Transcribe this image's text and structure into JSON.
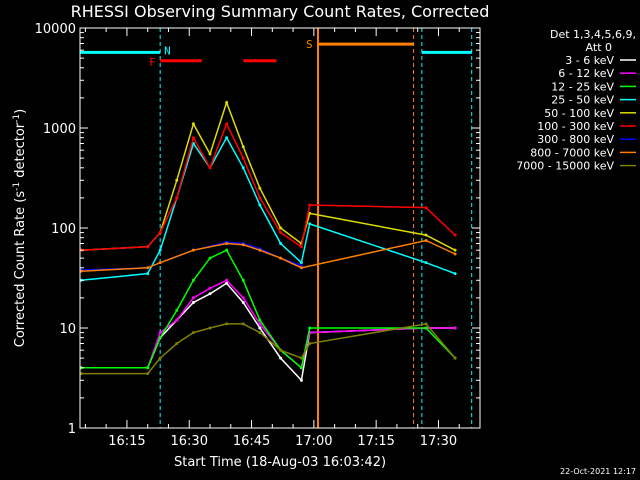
{
  "chart_data": {
    "type": "line",
    "title": "RHESSI Observing Summary Count Rates, Corrected",
    "xlabel": "Start Time (18-Aug-03 16:03:42)",
    "ylabel": "Corrected Count Rate (s⁻¹ detector⁻¹)",
    "ylabel_parts": {
      "main": "Corrected Count Rate (s",
      "exp1": "-1",
      "mid": " detector",
      "exp2": "-1",
      "end": ")"
    },
    "y_scale": "log",
    "ylim": [
      1,
      10000
    ],
    "xlim": [
      "16:03:42",
      "17:40:00"
    ],
    "x_ticks": [
      "16:15",
      "16:30",
      "16:45",
      "17:00",
      "17:15",
      "17:30"
    ],
    "y_ticks": [
      "1",
      "10",
      "100",
      "1000",
      "10000"
    ],
    "legend_header": [
      "Det 1,3,4,5,6,9,",
      "Att 0"
    ],
    "legend_placement": "right",
    "timestamp": "22-Oct-2021 12:17",
    "flag_labels": {
      "N": "N",
      "F": "F",
      "S": "S"
    },
    "colors": {
      "c3_6": "#ffffff",
      "c6_12": "#ff00ff",
      "c12_25": "#00ff00",
      "c25_50": "#00ffff",
      "c50_100": "#dddd00",
      "c100_300": "#ff0000",
      "c300_800": "#0000ff",
      "c800_7000": "#ff8000",
      "c7000_15000": "#808000",
      "night": "#00ffff",
      "flare": "#ff0000",
      "saa": "#ff8000"
    },
    "series": [
      {
        "name": "3 - 6 keV",
        "color": "#ffffff",
        "x": [
          "16:04",
          "16:20",
          "16:23",
          "16:27",
          "16:31",
          "16:35",
          "16:39",
          "16:43",
          "16:47",
          "16:52",
          "16:57",
          "16:59",
          "17:27",
          "17:34"
        ],
        "y": [
          4,
          4,
          8,
          12,
          18,
          22,
          28,
          18,
          10,
          5,
          3,
          9,
          10,
          10
        ]
      },
      {
        "name": "6 - 12 keV",
        "color": "#ff00ff",
        "x": [
          "16:20",
          "16:23",
          "16:27",
          "16:31",
          "16:35",
          "16:39",
          "16:43",
          "16:47",
          "16:52",
          "16:57",
          "16:59",
          "17:27",
          "17:34"
        ],
        "y": [
          4,
          9,
          12,
          20,
          25,
          30,
          20,
          11,
          6,
          4,
          9,
          10,
          10
        ]
      },
      {
        "name": "12 - 25 keV",
        "color": "#00ff00",
        "x": [
          "16:04",
          "16:20",
          "16:23",
          "16:27",
          "16:31",
          "16:35",
          "16:39",
          "16:43",
          "16:47",
          "16:52",
          "16:57",
          "16:59",
          "17:27",
          "17:34"
        ],
        "y": [
          4,
          4,
          8,
          15,
          30,
          50,
          60,
          30,
          12,
          6,
          4,
          10,
          10,
          5
        ]
      },
      {
        "name": "25 - 50 keV",
        "color": "#00ffff",
        "x": [
          "16:04",
          "16:20",
          "16:23",
          "16:27",
          "16:31",
          "16:35",
          "16:39",
          "16:43",
          "16:47",
          "16:52",
          "16:57",
          "16:59",
          "17:27",
          "17:34"
        ],
        "y": [
          30,
          35,
          60,
          200,
          700,
          400,
          800,
          400,
          170,
          70,
          45,
          110,
          45,
          35
        ]
      },
      {
        "name": "50 - 100 keV",
        "color": "#dddd00",
        "x": [
          "16:04",
          "16:20",
          "16:23",
          "16:27",
          "16:31",
          "16:35",
          "16:39",
          "16:43",
          "16:47",
          "16:52",
          "16:57",
          "16:59",
          "17:27",
          "17:34"
        ],
        "y": [
          60,
          65,
          90,
          300,
          1100,
          550,
          1800,
          650,
          250,
          100,
          70,
          140,
          85,
          60
        ]
      },
      {
        "name": "100 - 300 keV",
        "color": "#ff0000",
        "x": [
          "16:04",
          "16:20",
          "16:23",
          "16:27",
          "16:31",
          "16:35",
          "16:39",
          "16:43",
          "16:47",
          "16:52",
          "16:57",
          "16:59",
          "17:27",
          "17:34"
        ],
        "y": [
          60,
          65,
          90,
          200,
          800,
          400,
          1100,
          500,
          200,
          90,
          65,
          170,
          160,
          85
        ]
      },
      {
        "name": "300 - 800 keV",
        "color": "#0000ff",
        "x": [
          "16:04",
          "16:20",
          "16:23",
          "16:31",
          "16:39",
          "16:43",
          "16:47",
          "16:52",
          "16:57"
        ],
        "y": [
          38,
          40,
          45,
          60,
          72,
          70,
          62,
          50,
          42
        ]
      },
      {
        "name": "800 - 7000 keV",
        "color": "#ff8000",
        "x": [
          "16:04",
          "16:20",
          "16:23",
          "16:31",
          "16:39",
          "16:43",
          "16:47",
          "16:52",
          "16:57",
          "17:27",
          "17:34"
        ],
        "y": [
          37,
          40,
          45,
          60,
          70,
          68,
          60,
          50,
          40,
          75,
          55
        ]
      },
      {
        "name": "7000 - 15000 keV",
        "color": "#808000",
        "x": [
          "16:04",
          "16:20",
          "16:23",
          "16:27",
          "16:31",
          "16:35",
          "16:39",
          "16:43",
          "16:47",
          "16:52",
          "16:57",
          "16:59",
          "17:27",
          "17:34"
        ],
        "y": [
          3.5,
          3.5,
          5,
          7,
          9,
          10,
          11,
          11,
          9,
          6,
          5,
          7,
          11,
          5
        ]
      }
    ],
    "night_intervals": [
      [
        "16:03:42",
        "16:23:00"
      ],
      [
        "17:26:00",
        "17:38:00"
      ]
    ],
    "flare_intervals": [
      [
        "16:23:00",
        "16:33:00"
      ],
      [
        "16:43:00",
        "16:51:00"
      ]
    ],
    "saa_intervals": [
      [
        "17:01:00",
        "17:24:00"
      ]
    ]
  }
}
